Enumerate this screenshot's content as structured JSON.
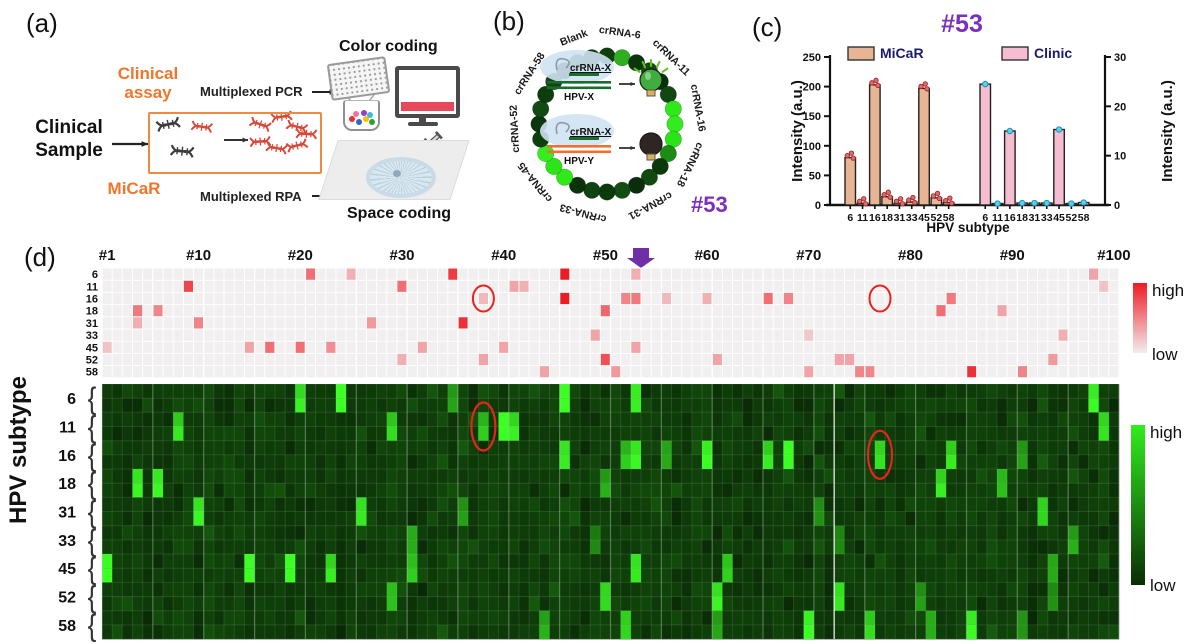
{
  "figure": {
    "panel_a": {
      "label": "(a)",
      "clinical_assay_line1": "Clinical",
      "clinical_assay_line2": "assay",
      "multiplexed_pcr": "Multiplexed PCR",
      "clinical_sample_line1": "Clinical",
      "clinical_sample_line2": "Sample",
      "micar": "MiCaR",
      "multiplexed_rpa": "Multiplexed RPA",
      "color_coding": "Color coding",
      "space_coding": "Space coding",
      "accent_orange": "#f0762b",
      "dna_red": "#d6493a",
      "dna_black": "#3c3c3c"
    },
    "panel_b": {
      "label": "(b)",
      "sample_id": "#53",
      "purple": "#7b2fbe",
      "ring_labels": [
        {
          "text": "crRNA-6",
          "angle": 8
        },
        {
          "text": "crRNA-11",
          "angle": 44
        },
        {
          "text": "crRNA-16",
          "angle": 80
        },
        {
          "text": "crRNA-18",
          "angle": 116
        },
        {
          "text": "crRNA-31",
          "angle": 152
        },
        {
          "text": "crRNA-33",
          "angle": 195
        },
        {
          "text": "crRNA-45",
          "angle": 231
        },
        {
          "text": "crRNA-52",
          "angle": 267
        },
        {
          "text": "crRNA-58",
          "angle": 303
        },
        {
          "text": "Blank",
          "angle": 339
        }
      ],
      "dot_colors": [
        "#0d3f0d",
        "#2fae22",
        "#0b360b",
        "#124c12",
        "#0a300a",
        "#114711",
        "#2ee81a",
        "#33ec1e",
        "#2be417",
        "#1e8c14",
        "#0c380c",
        "#114a11",
        "#0a2e0a",
        "#124e12",
        "#0d3a0d",
        "#0f430f",
        "#0b330b",
        "#30e91b",
        "#2ce518",
        "#35ee20",
        "#0e400e",
        "#0b350b",
        "#124b12",
        "#0d3c0d",
        "#104610",
        "#0a310a",
        "#134f13",
        "#0c390c"
      ],
      "reaction_top": {
        "crrna": "crRNA-X",
        "hpv": "HPV-X"
      },
      "reaction_bottom": {
        "crrna": "crRNA-X",
        "hpv": "HPV-Y"
      }
    },
    "panel_c": {
      "label": "(c)",
      "title": "#53",
      "title_color": "#7b2fbe",
      "legend_text_color": "#1b1b6e"
    },
    "panel_d": {
      "label": "(d)",
      "axis_label": "HPV subtype",
      "legend_high": "high",
      "legend_low": "low",
      "col_headers": [
        [
          1,
          "#1"
        ],
        [
          10,
          "#10"
        ],
        [
          20,
          "#20"
        ],
        [
          30,
          "#30"
        ],
        [
          40,
          "#40"
        ],
        [
          50,
          "#50"
        ],
        [
          60,
          "#60"
        ],
        [
          70,
          "#70"
        ],
        [
          80,
          "#80"
        ],
        [
          90,
          "#90"
        ],
        [
          100,
          "#100"
        ]
      ],
      "arrow_color": "#6f2fa8"
    }
  },
  "chart_data": [
    {
      "type": "bar",
      "title": "#53",
      "categories": [
        "6",
        "11",
        "16",
        "18",
        "31",
        "33",
        "45",
        "52",
        "58"
      ],
      "series": [
        {
          "name": "MiCaR",
          "axis": "left",
          "color": "#e7b593",
          "point_color": "#e26a6a",
          "point_stroke": "#9e2b2b",
          "values": [
            80,
            3,
            203,
            14,
            3,
            5,
            197,
            12,
            4
          ]
        },
        {
          "name": "Clinic",
          "axis": "right",
          "color": "#f6bdd2",
          "point_color": "#52d4f0",
          "point_stroke": "#1f90b0",
          "values": [
            24.5,
            0.3,
            15,
            0.4,
            0.4,
            0.4,
            15.3,
            0.3,
            0.5
          ]
        }
      ],
      "left_axis": {
        "label": "Intensity (a.u.)",
        "ticks": [
          0,
          50,
          100,
          150,
          200,
          250
        ],
        "max": 250
      },
      "right_axis": {
        "label": "Intensity (a.u.)",
        "ticks": [
          0,
          10,
          20,
          30
        ],
        "max": 30
      },
      "xlabel": "HPV subtype",
      "legend_position": "top"
    },
    {
      "type": "heatmap",
      "name": "clinic-red-heatmap",
      "rows": [
        "6",
        "11",
        "16",
        "18",
        "31",
        "33",
        "45",
        "52",
        "58"
      ],
      "cols": 100,
      "scale": {
        "low_label": "low",
        "high_label": "high",
        "low_color": "#f2eeee",
        "high_color": "#ed1c24"
      },
      "arrow_col": 53.5,
      "circles": [
        {
          "col": 38,
          "row": 2
        },
        {
          "col": 77,
          "row": 2
        }
      ],
      "cells": [
        [
          0,
          21,
          0.6
        ],
        [
          0,
          25,
          0.3
        ],
        [
          0,
          35,
          0.85
        ],
        [
          0,
          46,
          1
        ],
        [
          0,
          53,
          0.3
        ],
        [
          0,
          98,
          0.35
        ],
        [
          1,
          9,
          0.8
        ],
        [
          1,
          30,
          0.6
        ],
        [
          1,
          41,
          0.35
        ],
        [
          1,
          42,
          0.3
        ],
        [
          1,
          99,
          0.2
        ],
        [
          2,
          38,
          0.25
        ],
        [
          2,
          46,
          1
        ],
        [
          2,
          52,
          0.5
        ],
        [
          2,
          53,
          0.55
        ],
        [
          2,
          56,
          0.25
        ],
        [
          2,
          60,
          0.3
        ],
        [
          2,
          66,
          0.6
        ],
        [
          2,
          68,
          0.5
        ],
        [
          2,
          84,
          0.55
        ],
        [
          3,
          4,
          0.55
        ],
        [
          3,
          6,
          0.5
        ],
        [
          3,
          50,
          0.65
        ],
        [
          3,
          83,
          0.6
        ],
        [
          3,
          89,
          0.35
        ],
        [
          4,
          4,
          0.3
        ],
        [
          4,
          10,
          0.5
        ],
        [
          4,
          27,
          0.4
        ],
        [
          4,
          36,
          0.9
        ],
        [
          5,
          49,
          0.35
        ],
        [
          5,
          70,
          0.18
        ],
        [
          5,
          95,
          0.3
        ],
        [
          6,
          1,
          0.2
        ],
        [
          6,
          15,
          0.35
        ],
        [
          6,
          17,
          0.6
        ],
        [
          6,
          20,
          0.6
        ],
        [
          6,
          23,
          0.45
        ],
        [
          6,
          32,
          0.35
        ],
        [
          6,
          40,
          0.35
        ],
        [
          6,
          53,
          0.35
        ],
        [
          7,
          30,
          0.3
        ],
        [
          7,
          38,
          0.35
        ],
        [
          7,
          50,
          0.75
        ],
        [
          7,
          61,
          0.35
        ],
        [
          7,
          73,
          0.35
        ],
        [
          7,
          74,
          0.35
        ],
        [
          7,
          94,
          0.4
        ],
        [
          8,
          44,
          0.35
        ],
        [
          8,
          51,
          0.4
        ],
        [
          8,
          70,
          0.35
        ],
        [
          8,
          75,
          0.5
        ],
        [
          8,
          76,
          0.5
        ],
        [
          8,
          86,
          0.9
        ],
        [
          8,
          91,
          0.5
        ]
      ]
    },
    {
      "type": "heatmap",
      "name": "micar-green-heatmap",
      "rows": [
        "6",
        "11",
        "16",
        "18",
        "31",
        "33",
        "45",
        "52",
        "58"
      ],
      "rows_per_label": 2,
      "cols": 100,
      "scale": {
        "low_label": "low",
        "high_label": "high",
        "low_color": "#0a2d06",
        "high_color": "#30ee1c"
      },
      "circles": [
        {
          "col": 38,
          "pair": 1
        },
        {
          "col": 77,
          "pair": 2
        }
      ],
      "cells": [
        [
          0,
          20,
          1
        ],
        [
          0,
          24,
          1
        ],
        [
          0,
          35,
          0.6
        ],
        [
          0,
          46,
          1
        ],
        [
          0,
          53,
          0.9
        ],
        [
          0,
          98,
          1
        ],
        [
          1,
          8,
          1
        ],
        [
          1,
          29,
          0.9
        ],
        [
          1,
          38,
          0.85
        ],
        [
          1,
          40,
          1
        ],
        [
          1,
          41,
          1
        ],
        [
          1,
          99,
          0.9
        ],
        [
          2,
          46,
          0.9
        ],
        [
          2,
          52,
          0.85
        ],
        [
          2,
          53,
          1
        ],
        [
          2,
          56,
          0.6
        ],
        [
          2,
          60,
          1
        ],
        [
          2,
          66,
          1
        ],
        [
          2,
          68,
          1
        ],
        [
          2,
          77,
          0.9
        ],
        [
          2,
          84,
          1
        ],
        [
          2,
          91,
          0.6
        ],
        [
          3,
          4,
          1
        ],
        [
          3,
          6,
          1
        ],
        [
          3,
          50,
          0.7
        ],
        [
          3,
          83,
          1
        ],
        [
          3,
          89,
          0.7
        ],
        [
          4,
          10,
          1
        ],
        [
          4,
          26,
          0.9
        ],
        [
          4,
          36,
          0.6
        ],
        [
          4,
          71,
          0.5
        ],
        [
          4,
          93,
          0.8
        ],
        [
          5,
          31,
          0.6
        ],
        [
          5,
          49,
          0.5
        ],
        [
          5,
          73,
          0.45
        ],
        [
          5,
          96,
          0.7
        ],
        [
          6,
          1,
          1
        ],
        [
          6,
          15,
          1
        ],
        [
          6,
          19,
          1
        ],
        [
          6,
          23,
          1
        ],
        [
          6,
          31,
          0.8
        ],
        [
          6,
          53,
          0.9
        ],
        [
          6,
          62,
          0.8
        ],
        [
          6,
          94,
          0.6
        ],
        [
          7,
          29,
          0.7
        ],
        [
          7,
          50,
          0.8
        ],
        [
          7,
          61,
          1
        ],
        [
          7,
          73,
          0.9
        ],
        [
          7,
          81,
          0.6
        ],
        [
          7,
          94,
          0.5
        ],
        [
          8,
          44,
          0.7
        ],
        [
          8,
          52,
          0.8
        ],
        [
          8,
          61,
          0.6
        ],
        [
          8,
          70,
          1
        ],
        [
          8,
          76,
          0.9
        ],
        [
          8,
          82,
          0.6
        ],
        [
          8,
          86,
          1
        ],
        [
          8,
          91,
          0.5
        ]
      ]
    }
  ]
}
